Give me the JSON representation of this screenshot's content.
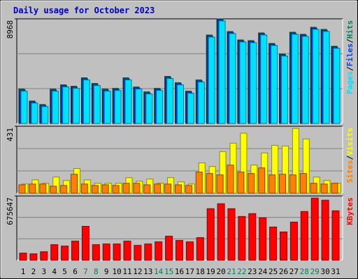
{
  "chart_data": {
    "type": "bar",
    "title": "Daily usage for October 2023",
    "categories": [
      "1",
      "2",
      "3",
      "4",
      "5",
      "6",
      "7",
      "8",
      "9",
      "10",
      "11",
      "12",
      "13",
      "14",
      "15",
      "16",
      "17",
      "18",
      "19",
      "20",
      "21",
      "22",
      "23",
      "24",
      "25",
      "26",
      "27",
      "28",
      "29",
      "30",
      "31"
    ],
    "weekend": [
      7,
      8,
      14,
      15,
      21,
      22,
      28,
      29
    ],
    "weekend_color": "#00805c",
    "label_separator": "/",
    "panels": [
      {
        "ylim": [
          0,
          8968
        ],
        "yticks": [
          8968
        ],
        "series": [
          {
            "name": "Hits",
            "color": "#00805c",
            "values": [
              2949,
              1926,
              1625,
              2949,
              3310,
              3190,
              3912,
              3430,
              2949,
              3009,
              3912,
              3129,
              2708,
              3009,
              4032,
              3491,
              2768,
              3731,
              7583,
              8968,
              7884,
              7162,
              7102,
              7764,
              6861,
              5958,
              7824,
              7643,
              8245,
              8065,
              6620
            ]
          },
          {
            "name": "Files",
            "color": "#0040ff",
            "values": [
              2859,
              1836,
              1535,
              2859,
              3220,
              3100,
              3822,
              3340,
              2859,
              2919,
              3822,
              3039,
              2618,
              2919,
              3942,
              3401,
              2678,
              3641,
              7493,
              8878,
              7794,
              7072,
              7012,
              7674,
              6771,
              5868,
              7734,
              7553,
              8155,
              7975,
              6530
            ]
          },
          {
            "name": "Pages",
            "color": "#00e0ff",
            "values": [
              2769,
              1746,
              1445,
              2769,
              3130,
              3010,
              3732,
              3250,
              2769,
              2829,
              3732,
              2949,
              2528,
              2829,
              3852,
              3311,
              2588,
              3551,
              7403,
              8788,
              7704,
              6982,
              6922,
              7584,
              6681,
              5778,
              7644,
              7463,
              8065,
              7885,
              6440
            ]
          }
        ]
      },
      {
        "ylim": [
          0,
          431
        ],
        "yticks": [
          431
        ],
        "series": [
          {
            "name": "Visits",
            "color": "#ffff00",
            "values": [
              59,
              86,
              64,
              104,
              82,
              159,
              86,
              64,
              64,
              64,
              100,
              77,
              91,
              64,
              100,
              73,
              59,
              195,
              172,
              268,
              322,
              386,
              181,
              259,
              308,
              304,
              417,
              349,
              104,
              82,
              64
            ]
          },
          {
            "name": "Sites",
            "color": "#ff8000",
            "values": [
              54,
              59,
              59,
              45,
              50,
              122,
              59,
              50,
              54,
              50,
              64,
              64,
              54,
              59,
              59,
              54,
              50,
              136,
              127,
              118,
              181,
              136,
              127,
              163,
              118,
              122,
              118,
              127,
              64,
              59,
              64
            ]
          }
        ]
      },
      {
        "ylim": [
          0,
          675647
        ],
        "yticks": [
          675647
        ],
        "series": [
          {
            "name": "KBytes",
            "color": "#ff0000",
            "values": [
              74250,
              66825,
              89100,
              163350,
              148500,
              200475,
              356400,
              163350,
              170775,
              170775,
              200475,
              155925,
              170775,
              193050,
              252450,
              207900,
              193050,
              237600,
              542025,
              594000,
              542025,
              460350,
              490050,
              445500,
              348975,
              297000,
              400950,
              512325,
              653400,
              631125,
              519750
            ]
          }
        ]
      }
    ]
  }
}
